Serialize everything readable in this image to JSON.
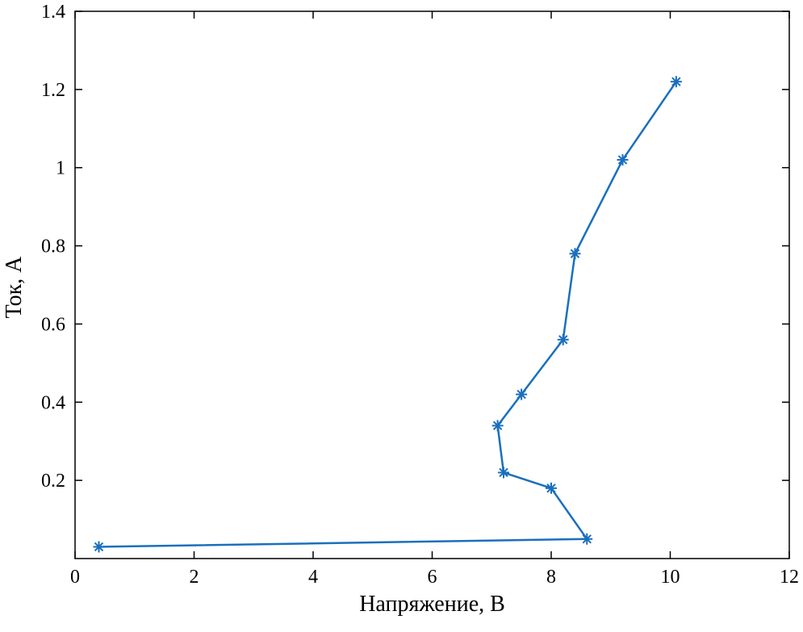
{
  "figure": {
    "background": "#ffffff",
    "axis_color": "#000000",
    "line_color": "#1a6fbd"
  },
  "chart_data": {
    "type": "line",
    "title": "",
    "xlabel": "Напряжение, В",
    "ylabel": "Ток, А",
    "marker": "asterisk",
    "grid": false,
    "legend": null,
    "xlim": [
      0,
      12
    ],
    "ylim": [
      0,
      1.4
    ],
    "xticks": [
      0,
      2,
      4,
      6,
      8,
      10,
      12
    ],
    "xtick_labels": [
      "0",
      "2",
      "4",
      "6",
      "8",
      "10",
      "12"
    ],
    "yticks": [
      0.2,
      0.4,
      0.6,
      0.8,
      1.0,
      1.2,
      1.4
    ],
    "ytick_labels": [
      "0.2",
      "0.4",
      "0.6",
      "0.8",
      "1",
      "1.2",
      "1.4"
    ],
    "x": [
      0.4,
      8.6,
      8.0,
      7.2,
      7.1,
      7.5,
      8.2,
      8.4,
      9.2,
      10.1
    ],
    "y": [
      0.03,
      0.05,
      0.18,
      0.22,
      0.34,
      0.42,
      0.56,
      0.78,
      1.02,
      1.22
    ]
  }
}
